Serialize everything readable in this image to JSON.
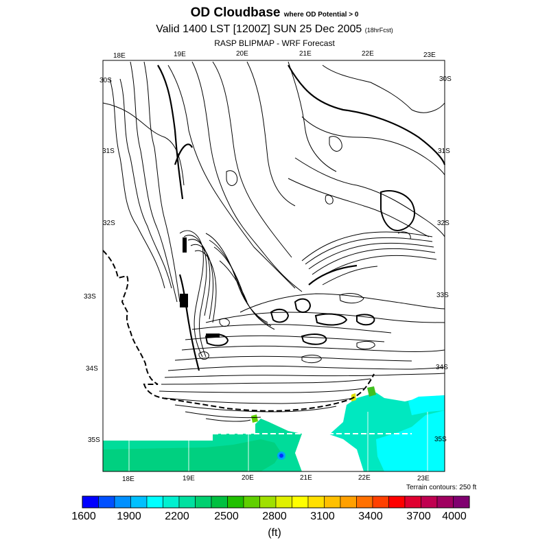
{
  "title": {
    "main": "OD Cloudbase",
    "qualifier": "where OD Potential > 0"
  },
  "valid": {
    "text": "Valid 1400 LST [1200Z] SUN 25 Dec 2005",
    "fcst": "(18hrFcst)"
  },
  "source": "RASP BLIPMAP - WRF Forecast",
  "lon_labels_top": [
    "18E",
    "19E",
    "20E",
    "21E",
    "22E",
    "23E"
  ],
  "lon_labels_bottom": [
    "18E",
    "19E",
    "20E",
    "21E",
    "22E",
    "23E"
  ],
  "lat_labels_left": [
    "30S",
    "31S",
    "32S",
    "33S",
    "34S",
    "35S"
  ],
  "lat_labels_right": [
    "30S",
    "31S",
    "32S",
    "33S",
    "34S",
    "35S"
  ],
  "terrain_note": "Terrain contours: 250 ft",
  "colorbar": {
    "labels": [
      "1600",
      "1900",
      "2200",
      "2500",
      "2800",
      "3100",
      "3400",
      "3700",
      "4000"
    ],
    "unit": "(ft)",
    "colors": [
      "#0000ff",
      "#0050ff",
      "#0090ff",
      "#00c0ff",
      "#00ffff",
      "#00f0d0",
      "#00e0a0",
      "#00d070",
      "#00c040",
      "#20c000",
      "#60d000",
      "#a0e000",
      "#e0f000",
      "#ffff00",
      "#ffe000",
      "#ffc000",
      "#ffa000",
      "#ff7000",
      "#ff4000",
      "#ff0000",
      "#e00030",
      "#c00050",
      "#a00060",
      "#800070"
    ]
  }
}
